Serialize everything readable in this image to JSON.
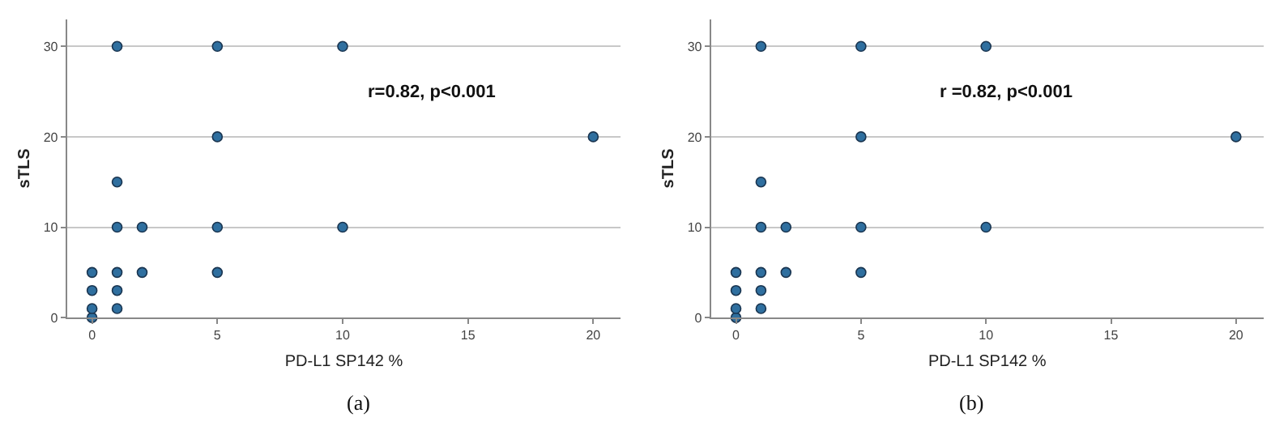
{
  "chart_data": [
    {
      "type": "scatter",
      "xlabel": "PD-L1 SP142 %",
      "ylabel": "sTLS",
      "annotations": [
        "r=0.82, p<0.001",
        "(a)"
      ],
      "x": [
        0,
        0,
        0,
        0,
        1,
        1,
        1,
        1,
        1,
        1,
        2,
        2,
        5,
        5,
        5,
        5,
        10,
        10,
        20
      ],
      "series": [
        {
          "color": "#2f6f9f",
          "values": [
            0,
            1,
            3,
            5,
            1,
            3,
            5,
            10,
            15,
            30,
            5,
            10,
            5,
            10,
            20,
            30,
            10,
            30,
            20
          ]
        }
      ],
      "xlim": [
        -1,
        21.1
      ],
      "xticks": [
        0,
        5,
        10,
        15,
        20
      ],
      "ylim": [
        0,
        33
      ],
      "yticks": [
        0,
        10,
        20,
        30
      ],
      "grid": "y",
      "marker": "circle"
    },
    {
      "type": "scatter",
      "xlabel": "PD-L1 SP142 %",
      "ylabel": "sTLS",
      "annotations": [
        "r =0.82, p<0.001",
        "(b)"
      ],
      "x": [
        0,
        0,
        0,
        0,
        1,
        1,
        1,
        1,
        1,
        1,
        2,
        2,
        5,
        5,
        5,
        5,
        10,
        10,
        20
      ],
      "series": [
        {
          "color": "#2f6f9f",
          "values": [
            0,
            1,
            3,
            5,
            1,
            3,
            5,
            10,
            15,
            30,
            5,
            10,
            5,
            10,
            20,
            30,
            10,
            30,
            20
          ]
        }
      ],
      "xlim": [
        -1,
        21.1
      ],
      "xticks": [
        0,
        5,
        10,
        15,
        20
      ],
      "ylim": [
        0,
        33
      ],
      "yticks": [
        0,
        10,
        20,
        30
      ],
      "grid": "y",
      "marker": "circle"
    }
  ]
}
